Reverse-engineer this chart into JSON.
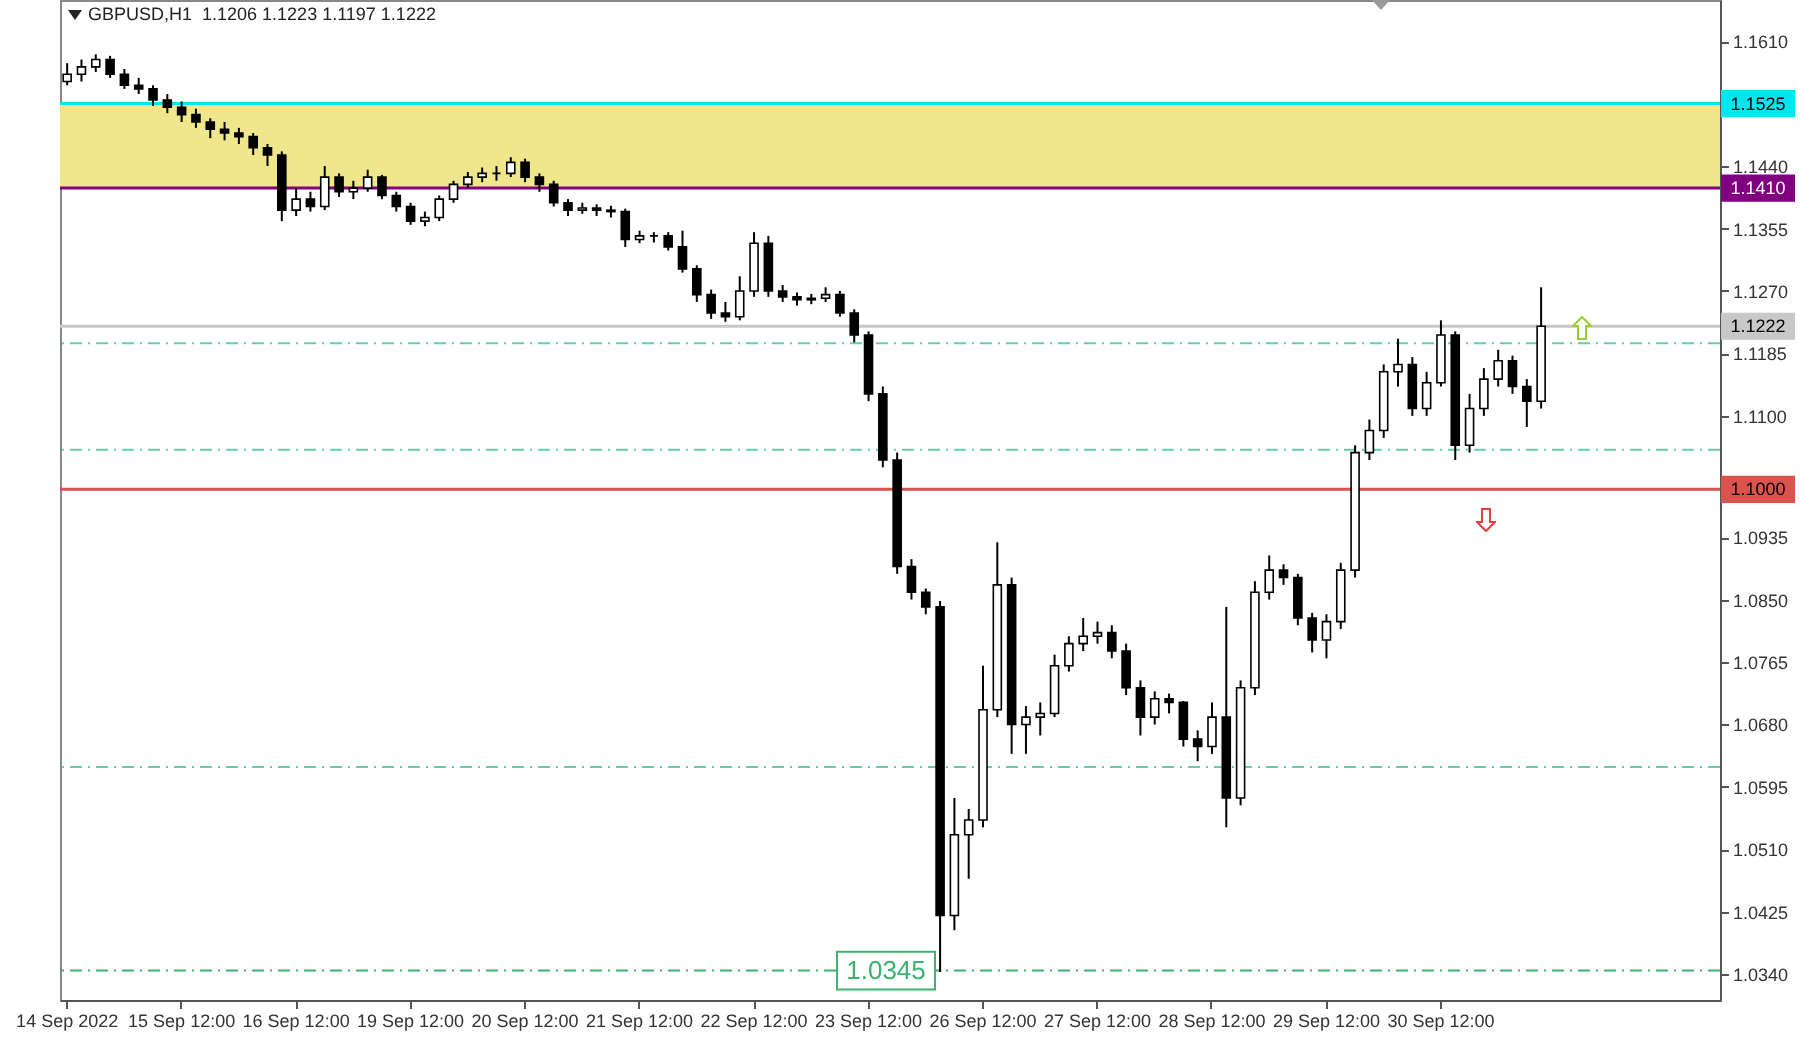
{
  "chart_data": {
    "type": "candlestick",
    "title": "GBPUSD,H1  1.1206 1.1223 1.1197 1.1222",
    "categories": [
      "14 Sep 2022",
      null,
      null,
      null,
      null,
      null,
      null,
      null,
      "15 Sep 12:00",
      null,
      null,
      null,
      null,
      null,
      null,
      null,
      "16 Sep 12:00",
      null,
      null,
      null,
      null,
      null,
      null,
      null,
      "19 Sep 12:00",
      null,
      null,
      null,
      null,
      null,
      null,
      null,
      "20 Sep 12:00",
      null,
      null,
      null,
      null,
      null,
      null,
      null,
      "21 Sep 12:00",
      null,
      null,
      null,
      null,
      null,
      null,
      null,
      "22 Sep 12:00",
      null,
      null,
      null,
      null,
      null,
      null,
      null,
      "23 Sep 12:00",
      null,
      null,
      null,
      null,
      null,
      null,
      null,
      "26 Sep 12:00",
      null,
      null,
      null,
      null,
      null,
      null,
      null,
      "27 Sep 12:00",
      null,
      null,
      null,
      null,
      null,
      null,
      null,
      "28 Sep 12:00",
      null,
      null,
      null,
      null,
      null,
      null,
      null,
      "29 Sep 12:00",
      null,
      null,
      null,
      null,
      null,
      null,
      null,
      "30 Sep 12:00",
      null,
      null,
      null,
      null,
      null,
      null,
      null,
      null,
      null,
      null,
      null,
      null,
      null,
      null,
      null,
      null,
      null,
      null,
      null
    ],
    "ohlc": [
      [
        1.1555,
        1.158,
        1.155,
        1.1565
      ],
      [
        1.1565,
        1.1585,
        1.1555,
        1.1575
      ],
      [
        1.1575,
        1.1592,
        1.1568,
        1.1585
      ],
      [
        1.1585,
        1.159,
        1.156,
        1.1565
      ],
      [
        1.1565,
        1.1572,
        1.1545,
        1.155
      ],
      [
        1.155,
        1.156,
        1.1538,
        1.1545
      ],
      [
        1.1545,
        1.155,
        1.1522,
        1.153
      ],
      [
        1.153,
        1.1538,
        1.1512,
        1.152
      ],
      [
        1.152,
        1.1528,
        1.15,
        1.151
      ],
      [
        1.151,
        1.1518,
        1.1492,
        1.15
      ],
      [
        1.15,
        1.1505,
        1.1478,
        1.149
      ],
      [
        1.149,
        1.15,
        1.1475,
        1.1485
      ],
      [
        1.1485,
        1.1492,
        1.147,
        1.148
      ],
      [
        1.148,
        1.1485,
        1.1455,
        1.1465
      ],
      [
        1.1465,
        1.147,
        1.144,
        1.1455
      ],
      [
        1.1455,
        1.146,
        1.1365,
        1.138
      ],
      [
        1.138,
        1.141,
        1.1372,
        1.1395
      ],
      [
        1.1395,
        1.1405,
        1.1378,
        1.1385
      ],
      [
        1.1385,
        1.144,
        1.138,
        1.1425
      ],
      [
        1.1425,
        1.143,
        1.1398,
        1.1405
      ],
      [
        1.1405,
        1.142,
        1.1395,
        1.141
      ],
      [
        1.141,
        1.1435,
        1.1405,
        1.1425
      ],
      [
        1.1425,
        1.1428,
        1.1395,
        1.14
      ],
      [
        1.14,
        1.1405,
        1.1378,
        1.1385
      ],
      [
        1.1385,
        1.139,
        1.136,
        1.1365
      ],
      [
        1.1365,
        1.1378,
        1.1358,
        1.137
      ],
      [
        1.137,
        1.14,
        1.1365,
        1.1395
      ],
      [
        1.1395,
        1.142,
        1.139,
        1.1415
      ],
      [
        1.1415,
        1.1432,
        1.141,
        1.1425
      ],
      [
        1.1425,
        1.1438,
        1.1418,
        1.143
      ],
      [
        1.143,
        1.144,
        1.142,
        1.143
      ],
      [
        1.143,
        1.1452,
        1.1425,
        1.1445
      ],
      [
        1.1445,
        1.145,
        1.1418,
        1.1425
      ],
      [
        1.1425,
        1.143,
        1.1405,
        1.1415
      ],
      [
        1.1415,
        1.142,
        1.1385,
        1.139
      ],
      [
        1.139,
        1.1395,
        1.1372,
        1.138
      ],
      [
        1.138,
        1.139,
        1.1375,
        1.1383
      ],
      [
        1.1383,
        1.1388,
        1.1372,
        1.138
      ],
      [
        1.138,
        1.1386,
        1.137,
        1.1378
      ],
      [
        1.1378,
        1.1382,
        1.133,
        1.134
      ],
      [
        1.134,
        1.1352,
        1.1335,
        1.1345
      ],
      [
        1.1345,
        1.135,
        1.1336,
        1.1345
      ],
      [
        1.1345,
        1.135,
        1.1325,
        1.133
      ],
      [
        1.133,
        1.1352,
        1.1295,
        1.13
      ],
      [
        1.13,
        1.1305,
        1.1255,
        1.1265
      ],
      [
        1.1265,
        1.1272,
        1.1232,
        1.124
      ],
      [
        1.124,
        1.1255,
        1.1228,
        1.1235
      ],
      [
        1.1235,
        1.129,
        1.123,
        1.127
      ],
      [
        1.127,
        1.135,
        1.1262,
        1.1335
      ],
      [
        1.1335,
        1.1345,
        1.1262,
        1.127
      ],
      [
        1.127,
        1.1278,
        1.1255,
        1.1262
      ],
      [
        1.1262,
        1.1268,
        1.125,
        1.1258
      ],
      [
        1.1258,
        1.1266,
        1.1252,
        1.126
      ],
      [
        1.126,
        1.1275,
        1.1255,
        1.1265
      ],
      [
        1.1265,
        1.127,
        1.1235,
        1.124
      ],
      [
        1.124,
        1.1245,
        1.12,
        1.121
      ],
      [
        1.121,
        1.1215,
        1.112,
        1.113
      ],
      [
        1.113,
        1.114,
        1.103,
        1.104
      ],
      [
        1.104,
        1.105,
        1.0885,
        1.0895
      ],
      [
        1.0895,
        1.0905,
        1.085,
        1.086
      ],
      [
        1.086,
        1.0865,
        1.083,
        1.084
      ],
      [
        1.084,
        1.0848,
        1.0343,
        1.042
      ],
      [
        1.042,
        1.058,
        1.04,
        1.053
      ],
      [
        1.053,
        1.0565,
        1.047,
        1.055
      ],
      [
        1.055,
        1.076,
        1.054,
        1.07
      ],
      [
        1.07,
        1.0928,
        1.069,
        1.087
      ],
      [
        1.087,
        1.088,
        1.064,
        1.068
      ],
      [
        1.068,
        1.0705,
        1.064,
        1.069
      ],
      [
        1.069,
        1.071,
        1.0665,
        1.0695
      ],
      [
        1.0695,
        1.0775,
        1.069,
        1.076
      ],
      [
        1.076,
        1.08,
        1.0752,
        1.079
      ],
      [
        1.079,
        1.0825,
        1.078,
        1.08
      ],
      [
        1.08,
        1.082,
        1.079,
        1.0805
      ],
      [
        1.0805,
        1.0815,
        1.077,
        1.078
      ],
      [
        1.078,
        1.079,
        1.072,
        1.073
      ],
      [
        1.073,
        1.074,
        1.0665,
        1.069
      ],
      [
        1.069,
        1.0725,
        1.068,
        1.0715
      ],
      [
        1.0715,
        1.0722,
        1.0695,
        1.071
      ],
      [
        1.071,
        1.0712,
        1.065,
        1.066
      ],
      [
        1.066,
        1.0672,
        1.063,
        1.065
      ],
      [
        1.065,
        1.071,
        1.064,
        1.069
      ],
      [
        1.069,
        1.084,
        1.054,
        1.058
      ],
      [
        1.058,
        1.074,
        1.057,
        1.073
      ],
      [
        1.073,
        1.0875,
        1.072,
        1.086
      ],
      [
        1.086,
        1.091,
        1.085,
        1.089
      ],
      [
        1.089,
        1.0898,
        1.087,
        1.088
      ],
      [
        1.088,
        1.0885,
        1.0815,
        1.0825
      ],
      [
        1.0825,
        1.0832,
        1.0778,
        1.0795
      ],
      [
        1.0795,
        1.083,
        1.077,
        1.082
      ],
      [
        1.082,
        1.09,
        1.081,
        1.089
      ],
      [
        1.089,
        1.106,
        1.088,
        1.105
      ],
      [
        1.105,
        1.1095,
        1.104,
        1.108
      ],
      [
        1.108,
        1.117,
        1.107,
        1.116
      ],
      [
        1.116,
        1.1205,
        1.114,
        1.117
      ],
      [
        1.117,
        1.118,
        1.11,
        1.111
      ],
      [
        1.111,
        1.116,
        1.11,
        1.1145
      ],
      [
        1.1145,
        1.123,
        1.114,
        1.121
      ],
      [
        1.121,
        1.1215,
        1.104,
        1.106
      ],
      [
        1.106,
        1.113,
        1.105,
        1.111
      ],
      [
        1.111,
        1.1165,
        1.11,
        1.115
      ],
      [
        1.115,
        1.119,
        1.114,
        1.1175
      ],
      [
        1.1175,
        1.1182,
        1.113,
        1.114
      ],
      [
        1.114,
        1.115,
        1.1085,
        1.112
      ],
      [
        1.112,
        1.1275,
        1.111,
        1.1222
      ],
      null,
      null,
      null,
      null,
      null,
      null,
      null,
      null,
      null,
      null,
      null,
      null
    ],
    "color": "#000000",
    "ylim": [
      1.0305,
      1.1666
    ],
    "yticks": [
      {
        "value": 1.161,
        "label": "1.1610"
      },
      {
        "value": 1.144,
        "label": "1.1440"
      },
      {
        "value": 1.1355,
        "label": "1.1355"
      },
      {
        "value": 1.127,
        "label": "1.1270"
      },
      {
        "value": 1.1185,
        "label": "1.1185"
      },
      {
        "value": 1.11,
        "label": "1.1100"
      },
      {
        "value": 1.0935,
        "label": "1.0935"
      },
      {
        "value": 1.085,
        "label": "1.0850"
      },
      {
        "value": 1.0765,
        "label": "1.0765"
      },
      {
        "value": 1.068,
        "label": "1.0680"
      },
      {
        "value": 1.0595,
        "label": "1.0595"
      },
      {
        "value": 1.051,
        "label": "1.0510"
      },
      {
        "value": 1.0425,
        "label": "1.0425"
      },
      {
        "value": 1.034,
        "label": "1.0340"
      }
    ],
    "bands": [
      {
        "axis": "y",
        "from": 1.141,
        "to": 1.1525,
        "color": "#f0e68c"
      }
    ],
    "ref_lines": [
      {
        "axis": "y",
        "value": 1.1525,
        "label": "1.1525",
        "color": "#00e5ee",
        "line_style": "solid"
      },
      {
        "axis": "y",
        "value": 1.141,
        "label": "1.1410",
        "color": "#800080",
        "line_style": "solid"
      },
      {
        "axis": "y",
        "value": 1.1222,
        "label": "1.1222",
        "color": "#c8c8c8",
        "line_style": "solid"
      },
      {
        "axis": "y",
        "value": 1.1,
        "label": "1.1000",
        "color": "#d9534f",
        "line_style": "solid"
      },
      {
        "axis": "y",
        "value": 1.1199,
        "color": "#66cdaa",
        "line_style": "dashed"
      },
      {
        "axis": "y",
        "value": 1.1054,
        "color": "#66cdaa",
        "line_style": "dashed"
      },
      {
        "axis": "y",
        "value": 1.0622,
        "color": "#66cdaa",
        "line_style": "dashed"
      },
      {
        "axis": "y",
        "value": 1.0345,
        "label": "1.0345",
        "color": "#3cb371",
        "line_style": "dashed"
      }
    ]
  }
}
